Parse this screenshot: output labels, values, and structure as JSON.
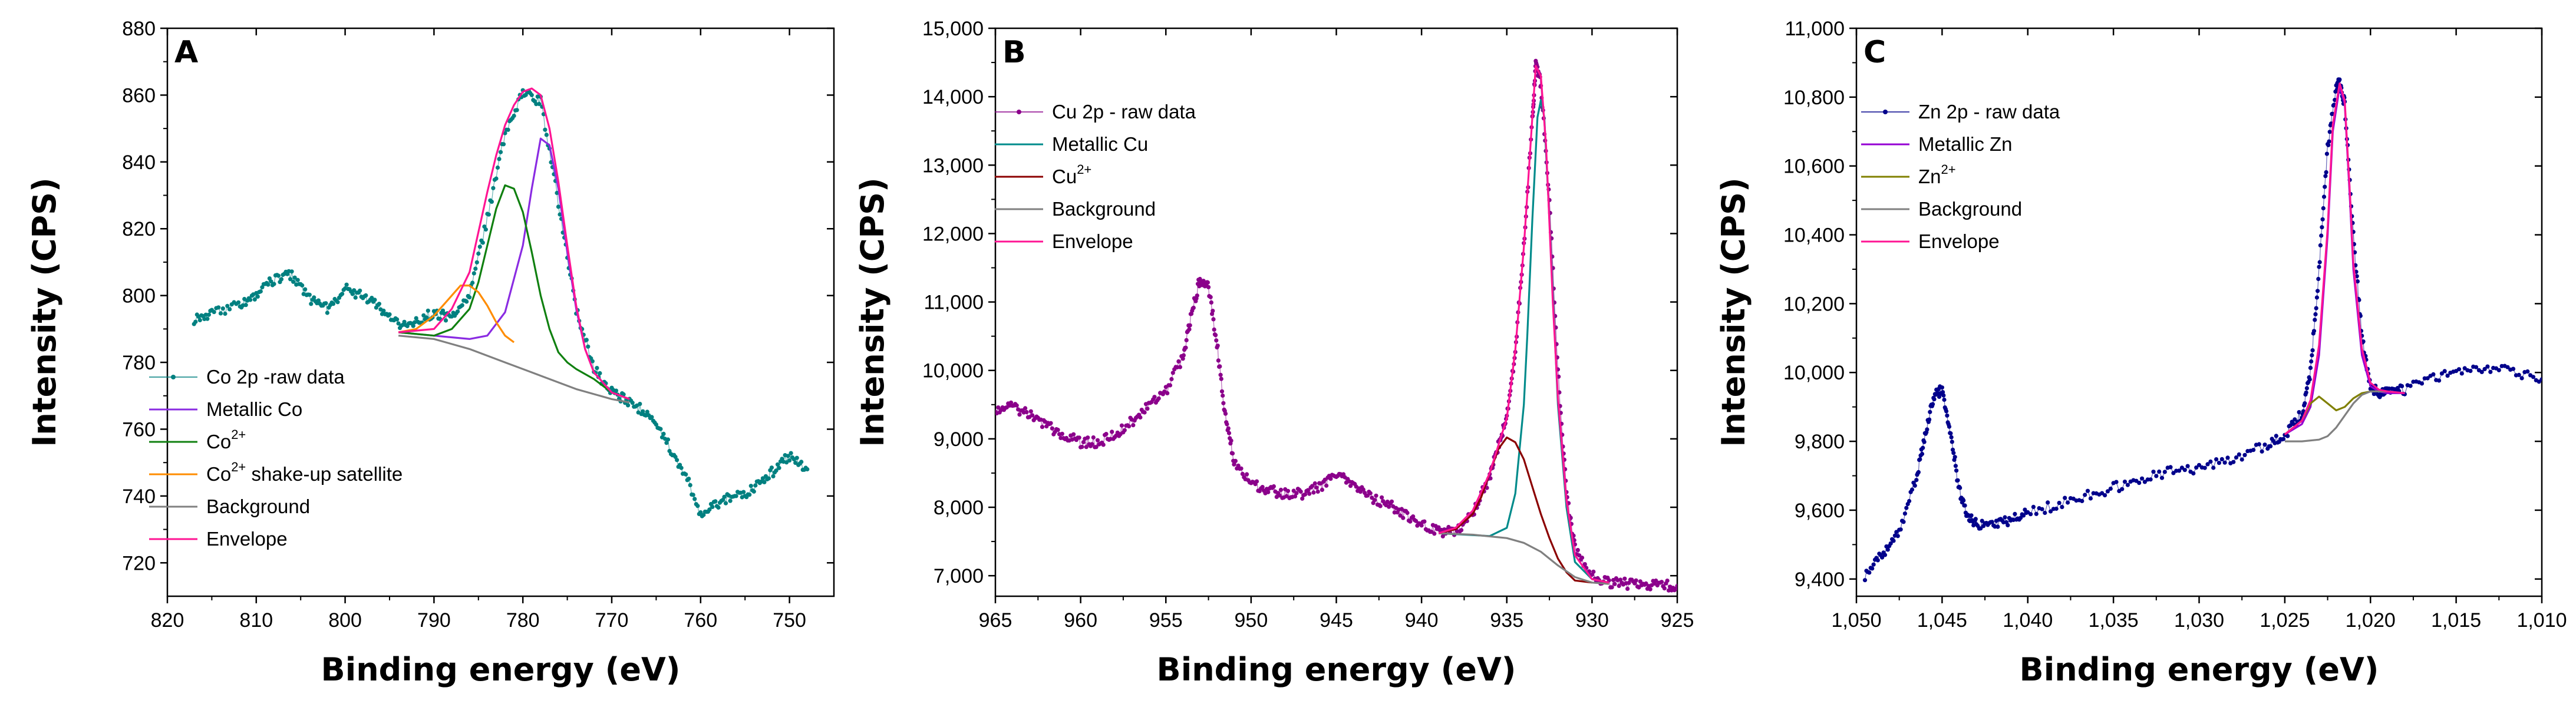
{
  "chart_data": [
    {
      "type": "line",
      "panel": "A",
      "xlabel": "Binding energy (eV)",
      "ylabel": "Intensity (CPS)",
      "xlim": [
        820,
        745
      ],
      "ylim": [
        710,
        880
      ],
      "x_ticks": [
        820,
        810,
        800,
        790,
        780,
        770,
        760,
        750
      ],
      "y_ticks": [
        720,
        740,
        760,
        780,
        800,
        820,
        840,
        860,
        880
      ],
      "x_tick_labels": [
        "820",
        "810",
        "800",
        "790",
        "780",
        "770",
        "760",
        "750"
      ],
      "y_tick_labels": [
        "720",
        "740",
        "760",
        "780",
        "800",
        "820",
        "840",
        "860",
        "880"
      ],
      "legend_position": "lower-left",
      "series": [
        {
          "name": "Co 2p -raw data",
          "legend": {
            "text": "Co 2p -raw data",
            "sup": ""
          },
          "color": "#008080",
          "style": "scatter-line",
          "x": [
            817,
            815,
            812,
            810,
            808,
            806,
            804,
            802,
            800,
            798,
            796,
            794,
            792,
            790,
            788,
            786,
            784,
            782,
            780,
            778,
            776,
            774,
            772,
            770,
            768,
            766,
            764,
            762,
            760,
            758,
            756,
            754,
            752,
            750,
            748
          ],
          "y": [
            793,
            795,
            797,
            800,
            805,
            806,
            799,
            796,
            802,
            800,
            796,
            791,
            792,
            795,
            793,
            800,
            823,
            848,
            861,
            858,
            828,
            796,
            778,
            771,
            768,
            765,
            757,
            748,
            735,
            738,
            740,
            742,
            747,
            752,
            748
          ]
        },
        {
          "name": "Metallic Co",
          "legend": {
            "text": "Metallic Co",
            "sup": ""
          },
          "color": "#8a2be2",
          "style": "line",
          "x": [
            794,
            790,
            786,
            784,
            782,
            780,
            779,
            778,
            777,
            776,
            775,
            774,
            773,
            772,
            770,
            768
          ],
          "y": [
            789,
            788,
            787,
            788,
            795,
            815,
            832,
            847,
            845,
            832,
            813,
            796,
            784,
            777,
            771,
            769
          ]
        },
        {
          "name": "Co2+",
          "legend": {
            "text": "Co",
            "sup": "2+"
          },
          "color": "#108010",
          "style": "line",
          "x": [
            794,
            790,
            788,
            786,
            785,
            784,
            783,
            782,
            781,
            780,
            779,
            778,
            777,
            776,
            775,
            774,
            772,
            770,
            768
          ],
          "y": [
            789,
            788,
            790,
            796,
            804,
            815,
            826,
            833,
            832,
            825,
            813,
            800,
            790,
            783,
            780,
            778,
            775,
            771,
            769
          ]
        },
        {
          "name": "Co2+ shake-up satellite",
          "legend": {
            "text": "Co",
            "sup": "2+",
            "suffix": " shake-up satellite"
          },
          "color": "#ff8c00",
          "style": "line",
          "x": [
            794,
            792,
            790,
            789,
            788,
            787,
            786,
            785,
            784,
            783,
            782,
            781
          ],
          "y": [
            789,
            790,
            794,
            797,
            800,
            803,
            803,
            801,
            797,
            792,
            788,
            786
          ]
        },
        {
          "name": "Background",
          "legend": {
            "text": "Background",
            "sup": ""
          },
          "color": "#808080",
          "style": "line",
          "x": [
            794,
            790,
            786,
            782,
            778,
            774,
            770,
            768
          ],
          "y": [
            788,
            787,
            784,
            780,
            776,
            772,
            769,
            768
          ]
        },
        {
          "name": "Envelope",
          "legend": {
            "text": "Envelope",
            "sup": ""
          },
          "color": "#ff1493",
          "style": "line",
          "x": [
            794,
            790,
            788,
            786,
            785,
            784,
            783,
            782,
            781,
            780,
            779,
            778,
            777,
            776,
            775,
            774,
            773,
            772,
            770,
            768
          ],
          "y": [
            789,
            790,
            796,
            807,
            819,
            831,
            842,
            851,
            857,
            861,
            862,
            860,
            850,
            834,
            815,
            797,
            784,
            777,
            771,
            769
          ]
        }
      ]
    },
    {
      "type": "line",
      "panel": "B",
      "xlabel": "Binding energy (eV)",
      "ylabel": "Intensity (CPS)",
      "xlim": [
        965,
        925
      ],
      "ylim": [
        6700,
        15000
      ],
      "x_ticks": [
        965,
        960,
        955,
        950,
        945,
        940,
        935,
        930,
        925
      ],
      "y_ticks": [
        7000,
        8000,
        9000,
        10000,
        11000,
        12000,
        13000,
        14000,
        15000
      ],
      "x_tick_labels": [
        "965",
        "960",
        "955",
        "950",
        "945",
        "940",
        "935",
        "930",
        "925"
      ],
      "y_tick_labels": [
        "7,000",
        "8,000",
        "9,000",
        "10,000",
        "11,000",
        "12,000",
        "13,000",
        "14,000",
        "15,000"
      ],
      "legend_position": "top-left",
      "series": [
        {
          "name": "Cu 2p - raw data",
          "legend": {
            "text": "Cu 2p - raw data",
            "sup": ""
          },
          "color": "#8b008b",
          "style": "scatter-line",
          "x": [
            965,
            964,
            963,
            962,
            961,
            960,
            959,
            958,
            957,
            956,
            955,
            954,
            953.5,
            953,
            952.5,
            952,
            951.5,
            951,
            950,
            949,
            948,
            947,
            946,
            945,
            944,
            943,
            942,
            941,
            940,
            939,
            938,
            937,
            936,
            935.5,
            935,
            934.5,
            934,
            933.5,
            933.3,
            933,
            932.5,
            932,
            931.5,
            931,
            930,
            929,
            928,
            927,
            926,
            925
          ],
          "y": [
            9400,
            9480,
            9350,
            9200,
            9050,
            8950,
            8950,
            9050,
            9250,
            9500,
            9700,
            10200,
            10800,
            11350,
            11200,
            10400,
            9300,
            8700,
            8350,
            8250,
            8200,
            8200,
            8300,
            8450,
            8350,
            8150,
            8050,
            7900,
            7750,
            7650,
            7650,
            7900,
            8450,
            8900,
            9300,
            10300,
            11800,
            13700,
            14450,
            14200,
            12500,
            10000,
            8200,
            7400,
            7000,
            6900,
            6880,
            6870,
            6860,
            6850
          ]
        },
        {
          "name": "Metallic Cu",
          "legend": {
            "text": "Metallic Cu",
            "sup": ""
          },
          "color": "#008b8b",
          "style": "line",
          "x": [
            939,
            936,
            935,
            934.5,
            934,
            933.8,
            933.5,
            933.2,
            933,
            932.8,
            932.5,
            932,
            931.5,
            931,
            930,
            929
          ],
          "y": [
            7620,
            7580,
            7700,
            8200,
            9500,
            10500,
            12200,
            13700,
            13950,
            13700,
            12200,
            9500,
            8000,
            7200,
            6950,
            6900
          ]
        },
        {
          "name": "Cu2+",
          "legend": {
            "text": "Cu",
            "sup": "2+"
          },
          "color": "#8b0000",
          "style": "line",
          "x": [
            939,
            938,
            937,
            936.5,
            936,
            935.5,
            935,
            934.5,
            934,
            933.5,
            933,
            932.5,
            932,
            931.5,
            931,
            930
          ],
          "y": [
            7620,
            7680,
            7900,
            8150,
            8500,
            8850,
            9020,
            8950,
            8700,
            8300,
            7900,
            7550,
            7250,
            7050,
            6930,
            6900
          ]
        },
        {
          "name": "Background",
          "legend": {
            "text": "Background",
            "sup": ""
          },
          "color": "#808080",
          "style": "line",
          "x": [
            939,
            937,
            935,
            934,
            933,
            932,
            931,
            930,
            929
          ],
          "y": [
            7620,
            7600,
            7550,
            7480,
            7350,
            7150,
            6980,
            6900,
            6880
          ]
        },
        {
          "name": "Envelope",
          "legend": {
            "text": "Envelope",
            "sup": ""
          },
          "color": "#ff1493",
          "style": "line",
          "x": [
            939,
            938,
            937,
            936,
            935.5,
            935,
            934.5,
            934,
            933.5,
            933.3,
            933,
            932.7,
            932.3,
            932,
            931.5,
            931,
            930,
            929
          ],
          "y": [
            7620,
            7700,
            7950,
            8500,
            8900,
            9300,
            10300,
            11800,
            13700,
            14450,
            14300,
            13300,
            11000,
            9600,
            8100,
            7300,
            6950,
            6900
          ]
        }
      ]
    },
    {
      "type": "line",
      "panel": "C",
      "xlabel": "Binding energy (eV)",
      "ylabel": "Intensity (CPS)",
      "xlim": [
        1050,
        1010
      ],
      "ylim": [
        9350,
        11000
      ],
      "x_ticks": [
        1050,
        1045,
        1040,
        1035,
        1030,
        1025,
        1020,
        1015,
        1010
      ],
      "y_ticks": [
        9400,
        9600,
        9800,
        10000,
        10200,
        10400,
        10600,
        10800,
        11000
      ],
      "x_tick_labels": [
        "1,050",
        "1,045",
        "1,040",
        "1,035",
        "1,030",
        "1,025",
        "1,020",
        "1,015",
        "1,010"
      ],
      "y_tick_labels": [
        "9,400",
        "9,600",
        "9,800",
        "10,000",
        "10,200",
        "10,400",
        "10,600",
        "10,800",
        "11,000"
      ],
      "legend_position": "top-left",
      "series": [
        {
          "name": "Zn 2p - raw data",
          "legend": {
            "text": "Zn 2p - raw data",
            "sup": ""
          },
          "color": "#00008b",
          "style": "scatter-line",
          "x": [
            1049.5,
            1048.5,
            1047.5,
            1046.5,
            1046,
            1045.5,
            1045,
            1044.5,
            1044,
            1043.5,
            1043,
            1042,
            1041,
            1040,
            1038,
            1036,
            1034,
            1032,
            1030,
            1028,
            1026,
            1025,
            1024,
            1023.5,
            1023,
            1022.5,
            1022,
            1021.8,
            1021.5,
            1021,
            1020.5,
            1020,
            1019.5,
            1019,
            1018,
            1016,
            1014,
            1012,
            1010
          ],
          "y": [
            9410,
            9470,
            9540,
            9690,
            9820,
            9930,
            9950,
            9820,
            9660,
            9580,
            9560,
            9560,
            9570,
            9590,
            9620,
            9650,
            9680,
            9710,
            9720,
            9750,
            9790,
            9820,
            9880,
            10000,
            10300,
            10650,
            10830,
            10840,
            10780,
            10400,
            10100,
            9960,
            9940,
            9950,
            9950,
            9990,
            10010,
            10010,
            9980
          ]
        },
        {
          "name": "Metallic Zn",
          "legend": {
            "text": "Metallic Zn",
            "sup": ""
          },
          "color": "#9400d3",
          "style": "line",
          "x": [
            1025,
            1024,
            1023.5,
            1023,
            1022.5,
            1022.2,
            1021.8,
            1021.5,
            1021.2,
            1021,
            1020.5,
            1020,
            1019.5,
            1019,
            1018
          ],
          "y": [
            9820,
            9850,
            9900,
            10050,
            10400,
            10700,
            10830,
            10780,
            10500,
            10300,
            10050,
            9960,
            9945,
            9940,
            9940
          ]
        },
        {
          "name": "Zn2+",
          "legend": {
            "text": "Zn",
            "sup": "2+"
          },
          "color": "#808000",
          "style": "line",
          "x": [
            1025,
            1024,
            1023.5,
            1023,
            1022.5,
            1022,
            1021.5,
            1021,
            1020.5,
            1020,
            1019
          ],
          "y": [
            9820,
            9860,
            9910,
            9930,
            9910,
            9890,
            9900,
            9925,
            9940,
            9945,
            9945
          ]
        },
        {
          "name": "Background",
          "legend": {
            "text": "Background",
            "sup": ""
          },
          "color": "#808080",
          "style": "line",
          "x": [
            1025,
            1024,
            1023,
            1022.5,
            1022,
            1021.5,
            1021,
            1020.5,
            1020,
            1019
          ],
          "y": [
            9800,
            9800,
            9805,
            9815,
            9840,
            9875,
            9910,
            9935,
            9945,
            9945
          ]
        },
        {
          "name": "Envelope",
          "legend": {
            "text": "Envelope",
            "sup": ""
          },
          "color": "#ff1493",
          "style": "line",
          "x": [
            1025,
            1024,
            1023.5,
            1023,
            1022.5,
            1022.2,
            1021.8,
            1021.5,
            1021.2,
            1021,
            1020.5,
            1020,
            1019.5,
            1019,
            1018
          ],
          "y": [
            9820,
            9860,
            9920,
            10080,
            10420,
            10720,
            10840,
            10790,
            10520,
            10320,
            10070,
            9970,
            9950,
            9945,
            9940
          ]
        }
      ]
    }
  ]
}
